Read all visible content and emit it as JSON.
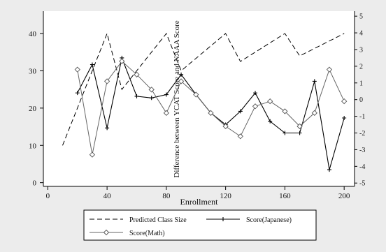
{
  "chart_data": {
    "type": "line",
    "xlabel": "Enrollment",
    "y2label": "Difference between YCAT Score and NAAA Score",
    "xlim": [
      -3,
      207
    ],
    "ylim": [
      -1,
      46
    ],
    "y2lim": [
      -5.2,
      5.3
    ],
    "x_ticks": [
      0,
      40,
      80,
      120,
      160,
      200
    ],
    "y_ticks": [
      0,
      10,
      20,
      30,
      40
    ],
    "y2_ticks": [
      5,
      4,
      3,
      2,
      1,
      0,
      -1,
      -2,
      -3,
      -4,
      -5
    ],
    "grid": false,
    "legend_position": "bottom",
    "series": [
      {
        "name": "Predicted Class Size",
        "axis": "left",
        "style": "dashed",
        "x": [
          10,
          40,
          50,
          80,
          90,
          120,
          130,
          160,
          170,
          200
        ],
        "y": [
          10,
          40,
          25,
          40,
          30,
          40,
          32.5,
          40,
          34,
          40
        ]
      },
      {
        "name": "Score(Japanese)",
        "axis": "right",
        "style": "plus",
        "x": [
          20,
          30,
          40,
          50,
          60,
          70,
          80,
          90,
          100,
          110,
          120,
          130,
          140,
          150,
          160,
          170,
          180,
          190,
          200
        ],
        "y": [
          0.4,
          2.1,
          -1.7,
          2.5,
          0.2,
          0.1,
          0.3,
          1.5,
          0.3,
          -0.8,
          -1.5,
          -0.7,
          0.4,
          -1.3,
          -2.0,
          -2.0,
          1.1,
          -4.2,
          -1.1
        ]
      },
      {
        "name": "Score(Math)",
        "axis": "right",
        "style": "diamond",
        "x": [
          20,
          30,
          40,
          50,
          60,
          70,
          80,
          90,
          100,
          110,
          120,
          130,
          140,
          150,
          160,
          170,
          180,
          190,
          200
        ],
        "y": [
          1.8,
          -3.3,
          1.1,
          2.3,
          1.5,
          0.6,
          -0.8,
          1.1,
          0.3,
          -0.8,
          -1.6,
          -2.2,
          -0.4,
          -0.1,
          -0.7,
          -1.6,
          -0.8,
          1.8,
          -0.1
        ]
      }
    ]
  }
}
